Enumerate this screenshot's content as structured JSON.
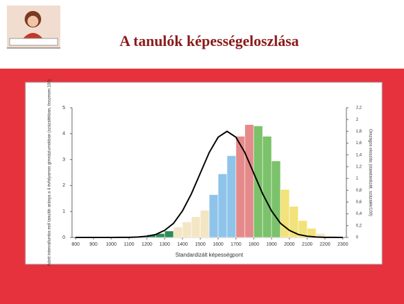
{
  "header": {
    "title": "A tanulók képességeloszlása"
  },
  "chart_data": {
    "type": "histogram",
    "x_label": "Standardizált képességpont",
    "y_label": "Adott intervallumba eső tanulók aránya a 4 évfolyamos gimnáziumokban (százalékban, összesen 100)",
    "y2_label": "Országos eloszlás (standardizált, százalék/100)",
    "bins": [
      1100,
      1150,
      1200,
      1250,
      1300,
      1350,
      1400,
      1450,
      1500,
      1550,
      1600,
      1650,
      1700,
      1750,
      1800,
      1850,
      1900,
      1950,
      2000,
      2050,
      2100,
      2150,
      2200,
      2250,
      2300
    ],
    "values": [
      0.02,
      0.05,
      0.1,
      0.15,
      0.25,
      0.4,
      0.6,
      0.8,
      1.05,
      1.65,
      2.45,
      3.15,
      3.9,
      4.35,
      4.3,
      3.9,
      2.95,
      1.85,
      1.2,
      0.65,
      0.35,
      0.15,
      0.05,
      0.02
    ],
    "colors": [
      "#2e8b57",
      "#2e8b57",
      "#2e8b57",
      "#2e8b57",
      "#2e8b57",
      "#f3e6c4",
      "#f3e6c4",
      "#f3e6c4",
      "#f3e6c4",
      "#8fc4ea",
      "#8fc4ea",
      "#8fc4ea",
      "#e58a8a",
      "#e58a8a",
      "#7bc26b",
      "#7bc26b",
      "#7bc26b",
      "#f2e27a",
      "#f2e27a",
      "#f2e27a",
      "#f2e27a",
      "#f3e6c4",
      "#f3e6c4",
      "#f3e6c4"
    ],
    "series": [
      {
        "type": "line",
        "axis": "y2",
        "color": "#000000",
        "x": [
          800,
          850,
          900,
          950,
          1000,
          1050,
          1100,
          1150,
          1200,
          1250,
          1300,
          1350,
          1400,
          1450,
          1500,
          1550,
          1600,
          1650,
          1700,
          1750,
          1800,
          1850,
          1900,
          1950,
          2000,
          2050,
          2100,
          2150,
          2200,
          2250,
          2300
        ],
        "values": [
          0,
          0,
          0,
          0,
          0,
          0.001,
          0.002,
          0.007,
          0.02,
          0.05,
          0.12,
          0.24,
          0.45,
          0.74,
          1.09,
          1.44,
          1.7,
          1.8,
          1.7,
          1.44,
          1.09,
          0.74,
          0.45,
          0.24,
          0.12,
          0.05,
          0.02,
          0.007,
          0.002,
          0.001,
          0
        ]
      }
    ],
    "xlim": [
      780,
      2320
    ],
    "ylim": [
      0,
      5
    ],
    "y2lim": [
      0,
      2.2
    ],
    "xticks": [
      800,
      900,
      1000,
      1100,
      1200,
      1300,
      1400,
      1500,
      1600,
      1700,
      1800,
      1900,
      2000,
      2100,
      2200,
      2300
    ],
    "yticks": [
      0,
      1,
      2,
      3,
      4,
      5
    ],
    "y2ticks": [
      0,
      {
        "value": 0.2,
        "label": "0,2"
      },
      {
        "value": 0.4,
        "label": "0,4"
      },
      {
        "value": 0.6,
        "label": "0,6"
      },
      {
        "value": 0.8,
        "label": "0,8"
      },
      1,
      {
        "value": 1.2,
        "label": "1,2"
      },
      {
        "value": 1.4,
        "label": "1,4"
      },
      {
        "value": 1.6,
        "label": "1,6"
      },
      {
        "value": 1.8,
        "label": "1,8"
      },
      2,
      {
        "value": 2.2,
        "label": "2,2"
      }
    ]
  }
}
